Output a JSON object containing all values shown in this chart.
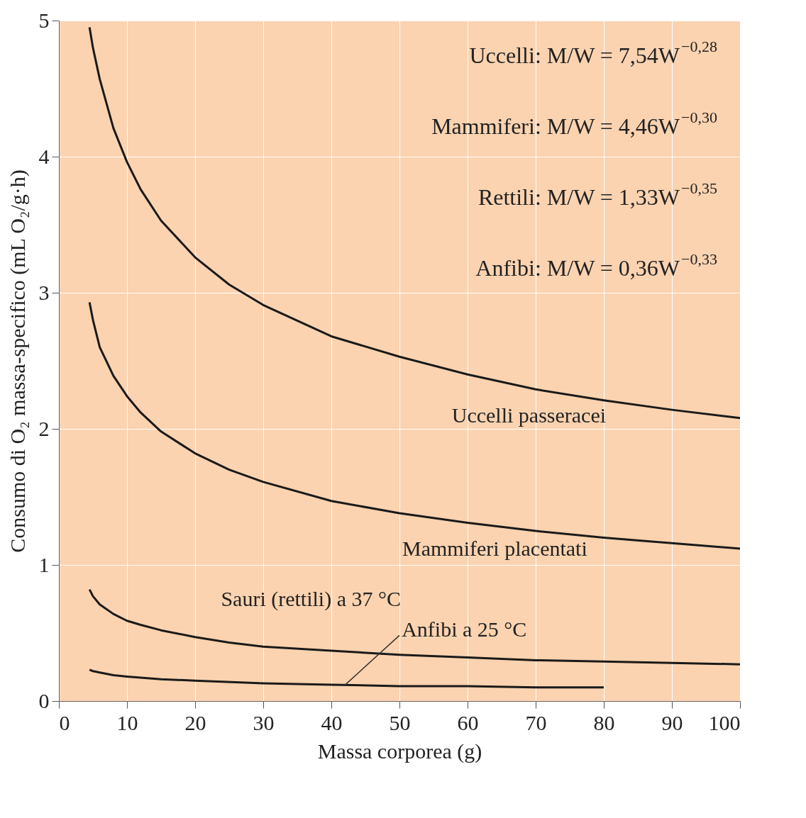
{
  "chart_data": {
    "type": "line",
    "xlabel": "Massa corporea (g)",
    "ylabel": "Consumo di O₂ massa-specifico (mL O₂/g·h)",
    "xlim": [
      0,
      100
    ],
    "xticks": [
      0,
      10,
      20,
      30,
      40,
      50,
      60,
      70,
      80,
      90,
      100
    ],
    "ylim": [
      0,
      5
    ],
    "yticks": [
      0,
      1,
      2,
      3,
      4,
      5
    ],
    "grid": true,
    "line_style": "solid",
    "marker": "none",
    "series": [
      {
        "name": "Uccelli passeracei",
        "color": "#1a1a1a",
        "x": [
          4.5,
          5,
          6,
          8,
          10,
          12,
          15,
          20,
          25,
          30,
          40,
          50,
          60,
          70,
          80,
          90,
          100
        ],
        "values": [
          4.95,
          4.8,
          4.57,
          4.21,
          3.96,
          3.76,
          3.53,
          3.26,
          3.06,
          2.91,
          2.68,
          2.53,
          2.4,
          2.29,
          2.21,
          2.14,
          2.08
        ]
      },
      {
        "name": "Mammiferi placentati",
        "color": "#1a1a1a",
        "x": [
          4.5,
          5,
          6,
          8,
          10,
          12,
          15,
          20,
          25,
          30,
          40,
          50,
          60,
          70,
          80,
          90,
          100
        ],
        "values": [
          2.93,
          2.8,
          2.6,
          2.39,
          2.24,
          2.12,
          1.98,
          1.82,
          1.7,
          1.61,
          1.47,
          1.38,
          1.31,
          1.25,
          1.2,
          1.16,
          1.12
        ]
      },
      {
        "name": "Sauri (rettili) a 37 °C",
        "color": "#1a1a1a",
        "x": [
          4.5,
          5,
          6,
          8,
          10,
          12,
          15,
          20,
          25,
          30,
          40,
          50,
          60,
          70,
          80,
          90,
          100
        ],
        "values": [
          0.82,
          0.77,
          0.71,
          0.64,
          0.59,
          0.56,
          0.52,
          0.47,
          0.43,
          0.4,
          0.37,
          0.34,
          0.32,
          0.3,
          0.29,
          0.28,
          0.27
        ]
      },
      {
        "name": "Anfibi a 25 °C",
        "color": "#1a1a1a",
        "x": [
          4.5,
          5,
          6,
          8,
          10,
          15,
          20,
          30,
          40,
          50,
          60,
          70,
          80
        ],
        "values": [
          0.23,
          0.22,
          0.21,
          0.19,
          0.18,
          0.16,
          0.15,
          0.13,
          0.12,
          0.11,
          0.11,
          0.1,
          0.1
        ]
      }
    ],
    "annotations": [
      "Uccelli:  M/W = 7,54W$^{−0,28}$",
      "Mammiferi:  M/W = 4,46W$^{−0,30}$",
      "Rettili:  M/W = 1,33W$^{−0,35}$",
      "Anfibi:  M/W = 0,36W$^{−0,33}$"
    ]
  }
}
